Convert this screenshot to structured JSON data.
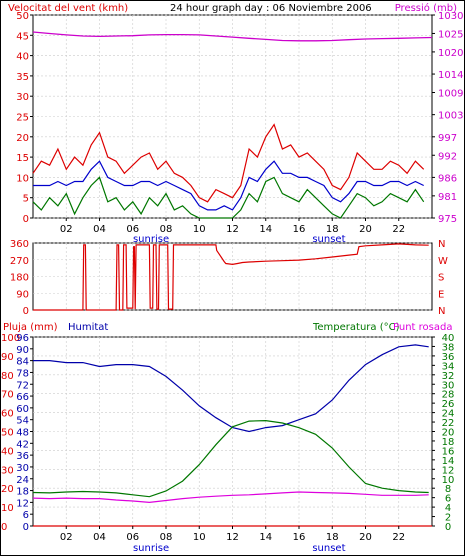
{
  "header": {
    "wind_label": "Velocitat del vent (kmh)",
    "title": "24 hour graph day : 06 Noviembre 2006",
    "pressure_label": "Pressió (mb)"
  },
  "colors": {
    "background": "#ffffff",
    "frame": "#000000",
    "wind_gust": "#dd0000",
    "wind_avg": "#0000cc",
    "wind_min": "#007700",
    "pressure": "#cc00cc",
    "direction": "#dd0000",
    "rain": "#dd0000",
    "humidity": "#0000aa",
    "temperature": "#007700",
    "dewpoint": "#dd00dd"
  },
  "time_axis": {
    "ticks": [
      "02",
      "04",
      "06",
      "08",
      "10",
      "12",
      "14",
      "16",
      "18",
      "20",
      "22"
    ],
    "tick_hours": [
      2,
      4,
      6,
      8,
      10,
      12,
      14,
      16,
      18,
      20,
      22
    ],
    "sunrise_label": "sunrise",
    "sunset_label": "sunset",
    "sunrise_hour": 7.1,
    "sunset_hour": 17.8
  },
  "chart_data": [
    {
      "type": "line",
      "name": "wind-and-pressure",
      "xlim": [
        0,
        24
      ],
      "y_left": {
        "label": "Velocitat del vent (kmh)",
        "range": [
          0,
          50
        ],
        "ticks": [
          0,
          5,
          10,
          15,
          20,
          25,
          30,
          35,
          40,
          45,
          50
        ]
      },
      "y_right": {
        "label": "Pressió (mb)",
        "range": [
          975,
          1030
        ],
        "ticks": [
          975,
          981,
          986,
          992,
          997,
          1003,
          1009,
          1014,
          1020,
          1025,
          1030
        ]
      },
      "series": [
        {
          "key": "gust",
          "axis": "left",
          "x": [
            0,
            0.5,
            1,
            1.5,
            2,
            2.5,
            3,
            3.5,
            4,
            4.5,
            5,
            5.5,
            6,
            6.5,
            7,
            7.5,
            8,
            8.5,
            9,
            9.5,
            10,
            10.5,
            11,
            11.5,
            12,
            12.5,
            13,
            13.5,
            14,
            14.5,
            15,
            15.5,
            16,
            16.5,
            17,
            17.5,
            18,
            18.5,
            19,
            19.5,
            20,
            20.5,
            21,
            21.5,
            22,
            22.5,
            23,
            23.5
          ],
          "values": [
            11,
            14,
            13,
            17,
            12,
            15,
            13,
            18,
            21,
            15,
            14,
            11,
            13,
            15,
            16,
            12,
            14,
            11,
            10,
            8,
            5,
            4,
            7,
            6,
            5,
            8,
            17,
            15,
            20,
            23,
            17,
            18,
            15,
            16,
            14,
            12,
            8,
            7,
            10,
            16,
            14,
            12,
            12,
            14,
            13,
            11,
            14,
            12
          ]
        },
        {
          "key": "average",
          "axis": "left",
          "x": [
            0,
            0.5,
            1,
            1.5,
            2,
            2.5,
            3,
            3.5,
            4,
            4.5,
            5,
            5.5,
            6,
            6.5,
            7,
            7.5,
            8,
            8.5,
            9,
            9.5,
            10,
            10.5,
            11,
            11.5,
            12,
            12.5,
            13,
            13.5,
            14,
            14.5,
            15,
            15.5,
            16,
            16.5,
            17,
            17.5,
            18,
            18.5,
            19,
            19.5,
            20,
            20.5,
            21,
            21.5,
            22,
            22.5,
            23,
            23.5
          ],
          "values": [
            8,
            8,
            8,
            9,
            8,
            9,
            9,
            12,
            14,
            10,
            9,
            8,
            8,
            9,
            9,
            8,
            9,
            8,
            7,
            6,
            3,
            2,
            2,
            3,
            2,
            5,
            10,
            9,
            12,
            14,
            11,
            11,
            10,
            10,
            9,
            8,
            5,
            4,
            6,
            9,
            9,
            8,
            8,
            9,
            9,
            8,
            9,
            8
          ]
        },
        {
          "key": "minimum",
          "axis": "left",
          "x": [
            0,
            0.5,
            1,
            1.5,
            2,
            2.5,
            3,
            3.5,
            4,
            4.5,
            5,
            5.5,
            6,
            6.5,
            7,
            7.5,
            8,
            8.5,
            9,
            9.5,
            10,
            10.5,
            11,
            11.5,
            12,
            12.5,
            13,
            13.5,
            14,
            14.5,
            15,
            15.5,
            16,
            16.5,
            17,
            17.5,
            18,
            18.5,
            19,
            19.5,
            20,
            20.5,
            21,
            21.5,
            22,
            22.5,
            23,
            23.5
          ],
          "values": [
            4,
            2,
            5,
            3,
            6,
            1,
            5,
            8,
            10,
            4,
            5,
            2,
            4,
            1,
            5,
            3,
            6,
            2,
            3,
            1,
            0,
            0,
            0,
            0,
            0,
            2,
            6,
            4,
            9,
            10,
            6,
            5,
            4,
            7,
            5,
            3,
            1,
            0,
            3,
            6,
            5,
            3,
            4,
            6,
            5,
            4,
            7,
            4
          ]
        },
        {
          "key": "pressure",
          "axis": "right",
          "x": [
            0,
            1,
            2,
            3,
            4,
            5,
            6,
            7,
            8,
            9,
            10,
            11,
            12,
            13,
            14,
            15,
            16,
            17,
            18,
            19,
            20,
            21,
            22,
            23,
            24
          ],
          "values": [
            1025.4,
            1025.0,
            1024.6,
            1024.3,
            1024.2,
            1024.3,
            1024.4,
            1024.6,
            1024.7,
            1024.7,
            1024.6,
            1024.3,
            1024.0,
            1023.7,
            1023.4,
            1023.1,
            1023.0,
            1023.0,
            1023.1,
            1023.3,
            1023.5,
            1023.6,
            1023.7,
            1023.8,
            1023.9
          ]
        }
      ]
    },
    {
      "type": "line",
      "name": "wind-direction",
      "xlim": [
        0,
        24
      ],
      "y_left": {
        "range": [
          0,
          360
        ],
        "ticks": [
          0,
          90,
          180,
          270,
          360
        ]
      },
      "y_right_labels": [
        "N",
        "W",
        "S",
        "E",
        "N"
      ],
      "series": [
        {
          "key": "direction",
          "x": [
            0,
            3.0,
            3.05,
            3.15,
            3.2,
            5.0,
            5.05,
            5.15,
            5.2,
            5.4,
            5.45,
            5.6,
            5.65,
            6.0,
            6.05,
            6.1,
            6.15,
            6.2,
            7.0,
            7.05,
            7.2,
            7.25,
            7.4,
            7.45,
            7.55,
            7.6,
            8.1,
            8.15,
            8.4,
            8.45,
            8.6,
            11.0,
            11.05,
            11.5,
            11.6,
            12.0,
            12.3,
            12.6,
            13.0,
            14.0,
            15.0,
            16.0,
            17.0,
            18.0,
            19.0,
            19.5,
            19.6,
            20.0,
            21.0,
            22.0,
            23.0,
            23.8
          ],
          "values": [
            0,
            0,
            350,
            350,
            0,
            0,
            350,
            350,
            0,
            0,
            350,
            350,
            10,
            10,
            340,
            340,
            5,
            350,
            350,
            10,
            10,
            350,
            350,
            5,
            5,
            350,
            350,
            5,
            5,
            350,
            350,
            350,
            320,
            260,
            250,
            245,
            250,
            255,
            258,
            262,
            265,
            268,
            275,
            285,
            295,
            300,
            340,
            345,
            350,
            355,
            350,
            348
          ]
        }
      ]
    },
    {
      "type": "line",
      "name": "rain-humidity-temperature",
      "xlim": [
        0,
        24
      ],
      "left_axes": [
        {
          "label": "Pluja (mm)",
          "range": [
            0,
            100
          ],
          "ticks": [
            0,
            10,
            20,
            30,
            40,
            50,
            60,
            70,
            80,
            90,
            100
          ]
        },
        {
          "label": "Humitat",
          "range": [
            0,
            96
          ],
          "ticks": [
            0,
            6,
            12,
            18,
            24,
            30,
            36,
            42,
            48,
            54,
            60,
            66,
            72,
            78,
            84,
            90,
            96
          ]
        }
      ],
      "right_axis": {
        "label": "Temperatura (°C)",
        "range": [
          0,
          40
        ],
        "ticks": [
          0,
          2,
          4,
          6,
          8,
          10,
          12,
          14,
          16,
          18,
          20,
          22,
          24,
          26,
          28,
          30,
          32,
          34,
          36,
          38,
          40
        ]
      },
      "series": [
        {
          "key": "rain",
          "axis": "rain",
          "x": [
            0,
            24
          ],
          "values": [
            0,
            0
          ]
        },
        {
          "key": "humidity",
          "axis": "humidity",
          "x": [
            0,
            1,
            2,
            3,
            4,
            5,
            6,
            7,
            8,
            9,
            10,
            11,
            12,
            13,
            14,
            15,
            16,
            17,
            18,
            19,
            20,
            21,
            22,
            23,
            23.8
          ],
          "values": [
            84,
            84,
            83,
            83,
            81,
            82,
            82,
            81,
            76,
            69,
            61,
            55,
            50,
            48,
            50,
            51,
            54,
            57,
            64,
            74,
            82,
            87,
            91,
            92,
            91
          ]
        },
        {
          "key": "temperature",
          "axis": "temp",
          "x": [
            0,
            1,
            2,
            3,
            4,
            5,
            6,
            7,
            8,
            9,
            10,
            11,
            12,
            13,
            14,
            15,
            16,
            17,
            18,
            19,
            20,
            21,
            22,
            23,
            23.8
          ],
          "values": [
            7.1,
            7.0,
            7.2,
            7.3,
            7.2,
            7.0,
            6.6,
            6.2,
            7.4,
            9.5,
            13.0,
            17.2,
            21.0,
            22.2,
            22.3,
            21.8,
            20.8,
            19.4,
            16.5,
            12.5,
            9.0,
            8.0,
            7.5,
            7.2,
            7.1
          ]
        },
        {
          "key": "dewpoint",
          "axis": "temp",
          "x": [
            0,
            1,
            2,
            3,
            4,
            5,
            6,
            7,
            8,
            9,
            10,
            11,
            12,
            13,
            14,
            15,
            16,
            17,
            18,
            19,
            20,
            21,
            22,
            23,
            23.8
          ],
          "values": [
            5.9,
            5.8,
            5.9,
            5.8,
            5.8,
            5.5,
            5.3,
            5.0,
            5.4,
            5.8,
            6.1,
            6.3,
            6.5,
            6.6,
            6.8,
            7.0,
            7.2,
            7.1,
            7.0,
            6.9,
            6.7,
            6.5,
            6.5,
            6.5,
            6.6
          ]
        }
      ]
    }
  ],
  "panel3_header": {
    "rain_label": "Pluja (mm)",
    "humidity_label": "Humitat",
    "temperature_label": "Temperatura (°C)",
    "dewpoint_label": "Punt rosada"
  }
}
